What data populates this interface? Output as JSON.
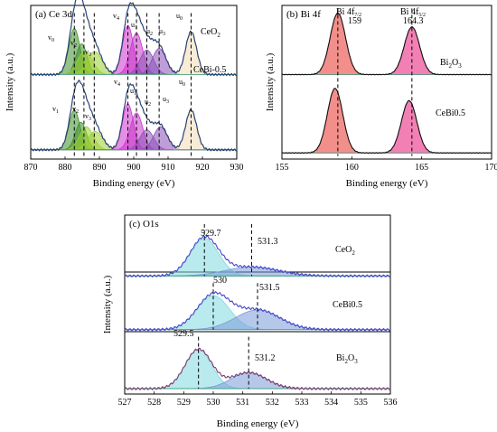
{
  "colors": {
    "envelope": "#111111",
    "fit": "#2f62c8",
    "baseline": "#3aa57a",
    "ceo2_v0": "#3e8f2a",
    "ceo2_v": "#9acd32",
    "ceo2_v4": "#cc33cc",
    "ceo2_u": "#8a4fb8",
    "ceo2_u0": "#f3ddb4",
    "bi_peak_1": "#f07b75",
    "bi_peak_2": "#f06aa8",
    "o_lattice": "#7fd8e0",
    "o_adsorbed": "#7a9ad8",
    "o_envelope_ceo2": "#6a30c8",
    "o_envelope_bi2o3": "#d01818"
  },
  "chart_data": [
    {
      "type": "line",
      "panel_label": "(a)  Ce 3d",
      "xlabel": "Binding energy (eV)",
      "ylabel": "Intensity (a.u.)",
      "xlim": [
        870,
        930
      ],
      "x_ticks": [
        870,
        880,
        890,
        900,
        910,
        920,
        930
      ],
      "series": [
        {
          "name": "CeO₂",
          "offset": 0.55,
          "peaks": [
            {
              "label": "v₀",
              "center": 882.7,
              "height": 0.3,
              "width": 1.6
            },
            {
              "label": "",
              "center": 884.8,
              "height": 0.2,
              "width": 1.6
            },
            {
              "label": "v₂",
              "center": 885.8,
              "height": 0.15,
              "width": 2.2
            },
            {
              "label": "v₃",
              "center": 888.6,
              "height": 0.15,
              "width": 2.2
            },
            {
              "label": "v₄",
              "center": 898.3,
              "height": 0.32,
              "width": 1.6
            },
            {
              "label": "u₁",
              "center": 900.8,
              "height": 0.27,
              "width": 1.8
            },
            {
              "label": "u₂",
              "center": 903.8,
              "height": 0.16,
              "width": 2.0
            },
            {
              "label": "u₃",
              "center": 907.4,
              "height": 0.17,
              "width": 2.0
            },
            {
              "label": "u₀",
              "center": 916.7,
              "height": 0.28,
              "width": 1.6
            }
          ]
        },
        {
          "name": "CeBi-0.5",
          "offset": 0.06,
          "peaks": [
            {
              "label": "v₁",
              "center": 882.7,
              "height": 0.26,
              "width": 1.6
            },
            {
              "label": "",
              "center": 884.6,
              "height": 0.18,
              "width": 1.6
            },
            {
              "label": "v₂",
              "center": 886.2,
              "height": 0.15,
              "width": 2.0
            },
            {
              "label": "v₃",
              "center": 888.8,
              "height": 0.12,
              "width": 2.2
            },
            {
              "label": "v₄",
              "center": 898.3,
              "height": 0.3,
              "width": 1.6
            },
            {
              "label": "u₁",
              "center": 900.8,
              "height": 0.24,
              "width": 1.8
            },
            {
              "label": "u₂",
              "center": 903.8,
              "height": 0.13,
              "width": 2.0
            },
            {
              "label": "u₃",
              "center": 907.8,
              "height": 0.15,
              "width": 2.0
            },
            {
              "label": "u₀",
              "center": 916.7,
              "height": 0.26,
              "width": 1.6
            }
          ]
        }
      ],
      "reference_lines": [
        882.7,
        885.5,
        888.5,
        898.3,
        900.8,
        903.8,
        907.4,
        916.7
      ]
    },
    {
      "type": "line",
      "panel_label": "(b)  Bi 4f",
      "xlabel": "Binding energy (eV)",
      "ylabel": "Intensity (a.u.)",
      "xlim": [
        155,
        170
      ],
      "x_ticks": [
        155,
        160,
        165,
        170
      ],
      "series": [
        {
          "name": "Bi₂O₃",
          "offset": 0.55,
          "peaks": [
            {
              "label": "Bi 4f₇/₂ 159",
              "center": 159.0,
              "height": 0.4,
              "width": 0.55
            },
            {
              "label": "Bi 4f₅/₂ 164.3",
              "center": 164.3,
              "height": 0.31,
              "width": 0.55
            }
          ]
        },
        {
          "name": "CeBi0.5",
          "offset": 0.04,
          "peaks": [
            {
              "label": "",
              "center": 158.8,
              "height": 0.42,
              "width": 0.55
            },
            {
              "label": "",
              "center": 164.1,
              "height": 0.34,
              "width": 0.55
            }
          ]
        }
      ],
      "reference_lines": [
        159.0,
        164.3
      ],
      "annotations": [
        {
          "line1": "Bi 4f",
          "sub": "7/2",
          "value": "159"
        },
        {
          "line1": "Bi 4f",
          "sub": "5/2",
          "value": "164.3"
        }
      ]
    },
    {
      "type": "line",
      "panel_label": "(c)  O1s",
      "xlabel": "Binding energy (eV)",
      "ylabel": "Intensity (a.u.)",
      "xlim": [
        527,
        536
      ],
      "x_ticks": [
        527,
        528,
        529,
        530,
        531,
        532,
        533,
        534,
        535,
        536
      ],
      "series": [
        {
          "name": "CeO₂",
          "offset": 0.66,
          "peaks": [
            {
              "label": "529.7",
              "center": 529.7,
              "height": 0.21,
              "width": 0.48
            },
            {
              "label": "531.3",
              "center": 531.3,
              "height": 0.05,
              "width": 0.9
            }
          ]
        },
        {
          "name": "CeBi0.5",
          "offset": 0.36,
          "peaks": [
            {
              "label": "530",
              "center": 530.0,
              "height": 0.19,
              "width": 0.55
            },
            {
              "label": "531.5",
              "center": 531.5,
              "height": 0.11,
              "width": 0.75
            }
          ]
        },
        {
          "name": "Bi₂O₃",
          "offset": 0.03,
          "peaks": [
            {
              "label": "529.5",
              "center": 529.5,
              "height": 0.22,
              "width": 0.45
            },
            {
              "label": "531.2",
              "center": 531.2,
              "height": 0.09,
              "width": 0.6
            }
          ]
        }
      ],
      "reference_lines": [
        529.7,
        531.3,
        530.0,
        531.5,
        529.5,
        531.2
      ]
    }
  ],
  "labels": {
    "a_panel": "(a)  Ce 3d",
    "a_xlabel": "Binding energy (eV)",
    "a_ylabel": "Intensity (a.u.)",
    "a_series_top_prefix": "CeO",
    "a_series_top_sub": "2",
    "a_series_bottom": "CeBi-0.5",
    "a_top_peak_labels": [
      "v",
      "v",
      "v",
      "v",
      "u",
      "u",
      "u",
      "u"
    ],
    "b_panel": "(b)  Bi 4f",
    "b_xlabel": "Binding energy (eV)",
    "b_ylabel": "Intensity (a.u.)",
    "b_series_top_prefix": "Bi",
    "b_series_top_sub1": "2",
    "b_series_top_mid": "O",
    "b_series_top_sub2": "3",
    "b_series_bottom": "CeBi0.5",
    "b_annot_1_main": "Bi 4f",
    "b_annot_1_sub": "7/2",
    "b_annot_1_value": "159",
    "b_annot_2_main": "Bi 4f",
    "b_annot_2_sub": "5/2",
    "b_annot_2_value": "164.3",
    "c_panel": "(c)  O1s",
    "c_xlabel": "Binding energy (eV)",
    "c_ylabel": "Intensity (a.u.)",
    "c_series_1_prefix": "CeO",
    "c_series_1_sub": "2",
    "c_series_2": "CeBi0.5",
    "c_series_3_prefix": "Bi",
    "c_series_3_sub1": "2",
    "c_series_3_mid": "O",
    "c_series_3_sub2": "3",
    "c_values": [
      "529.7",
      "531.3",
      "530",
      "531.5",
      "529.5",
      "531.2"
    ]
  }
}
